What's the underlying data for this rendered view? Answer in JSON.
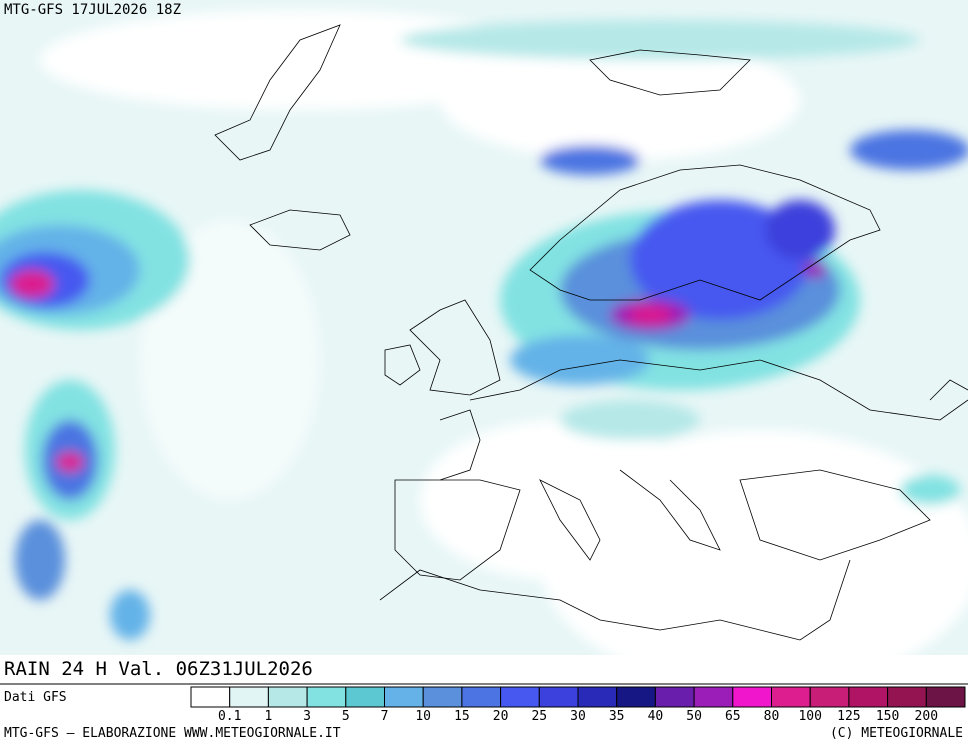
{
  "header": {
    "run": "MTG-GFS 17JUL2026 18Z"
  },
  "map": {
    "field": "RAIN 24 H Val. 06Z31JUL2026"
  },
  "legend": {
    "source": "Dati GFS",
    "labels": [
      0.1,
      1,
      3,
      5,
      7,
      10,
      15,
      20,
      25,
      30,
      35,
      40,
      50,
      65,
      80,
      100,
      125,
      150,
      200
    ],
    "colors": [
      "#ffffff",
      "#e2f5f5",
      "#b6e8e8",
      "#82e2e2",
      "#5cc8d2",
      "#64b2e8",
      "#5a90dc",
      "#4c74e2",
      "#4658f0",
      "#3c40dc",
      "#2a2ab8",
      "#161684",
      "#6a1eac",
      "#9c1eb8",
      "#f016cc",
      "#dc1e8e",
      "#c81e78",
      "#b01464",
      "#941452",
      "#6c1446"
    ]
  },
  "footer": {
    "credit": "MTG-GFS — ELABORAZIONE WWW.METEOGIORNALE.IT",
    "copyright": "(C) METEOGIORNALE"
  }
}
